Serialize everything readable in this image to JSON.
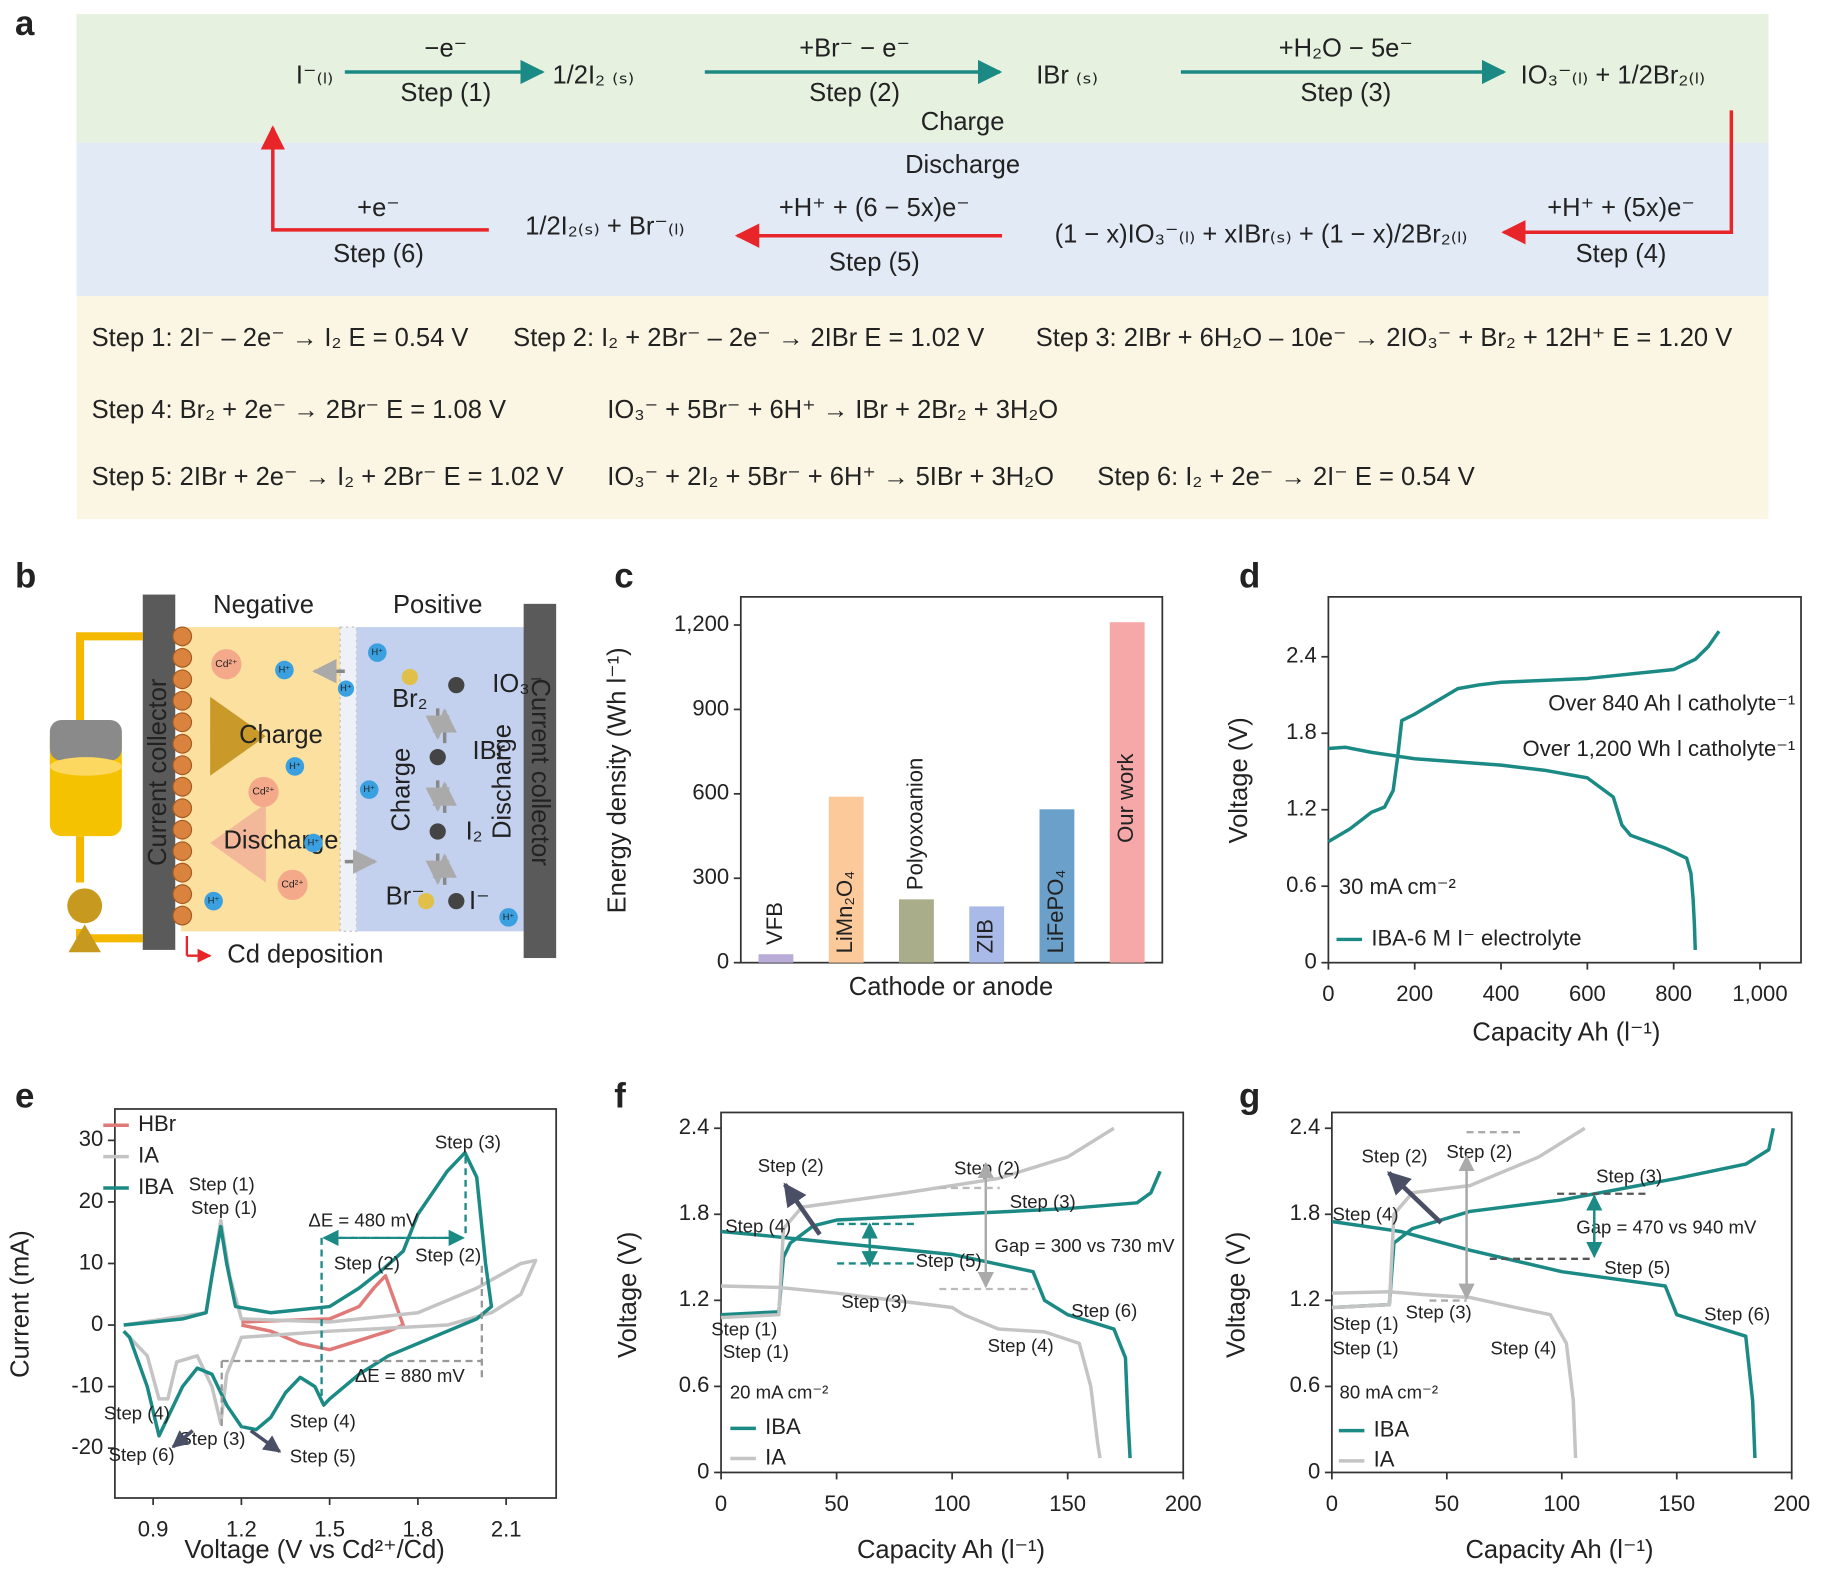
{
  "panel_labels": [
    "a",
    "b",
    "c",
    "d",
    "e",
    "f",
    "g"
  ],
  "scheme": {
    "charge_species": [
      "I⁻₍ₗ₎",
      "1/2I₂ ₍ₛ₎",
      "IBr ₍ₛ₎",
      "IO₃⁻₍ₗ₎ + 1/2Br₂₍ₗ₎"
    ],
    "charge_steps": [
      {
        "top": "−e⁻",
        "bottom": "Step (1)"
      },
      {
        "top": "+Br⁻ − e⁻",
        "bottom": "Step (2)"
      },
      {
        "top": "+H₂O − 5e⁻",
        "bottom": "Step (3)"
      }
    ],
    "charge_label": "Charge",
    "discharge_label": "Discharge",
    "discharge_species": [
      "(1 − x)IO₃⁻₍ₗ₎ + xIBr₍ₛ₎ + (1 − x)/2Br₂₍ₗ₎",
      "1/2I₂₍ₛ₎ + Br⁻₍ₗ₎"
    ],
    "discharge_steps": [
      {
        "top": "+H⁺ + (5x)e⁻",
        "bottom": "Step (4)"
      },
      {
        "top": "+H⁺ + (6 − 5x)e⁻",
        "bottom": "Step (5)"
      },
      {
        "top": "+e⁻",
        "bottom": "Step (6)"
      }
    ],
    "equations": [
      [
        "Step 1: 2I⁻ – 2e⁻ → I₂   E = 0.54 V",
        "Step 2: I₂ + 2Br⁻ – 2e⁻ → 2IBr   E = 1.02 V",
        "Step 3: 2IBr + 6H₂O – 10e⁻ → 2IO₃⁻ + Br₂ + 12H⁺   E = 1.20 V"
      ],
      [
        "Step 4: Br₂ + 2e⁻ → 2Br⁻   E = 1.08 V",
        "IO₃⁻ + 5Br⁻ + 6H⁺ → IBr + 2Br₂ + 3H₂O"
      ],
      [
        "Step 5: 2IBr + 2e⁻ → I₂ + 2Br⁻   E = 1.02 V",
        "IO₃⁻ + 2I₂ + 5Br⁻ + 6H⁺ → 5IBr + 3H₂O",
        "Step 6: I₂ + 2e⁻ → 2I⁻   E = 0.54 V"
      ]
    ]
  },
  "diagram": {
    "negative": "Negative",
    "positive": "Positive",
    "collector_left": "Current collector",
    "collector_right": "Current collector",
    "charge": "Charge",
    "discharge": "Discharge",
    "deposition": "Cd deposition",
    "inner_charge": "Charge",
    "inner_discharge": "Discharge",
    "ions": [
      "Cd²⁺",
      "Cd²⁺",
      "Cd²⁺",
      "H⁺",
      "H⁺",
      "H⁺",
      "H⁺",
      "H⁺",
      "H⁺",
      "H⁺",
      "H⁺"
    ],
    "species": [
      "Br₂",
      "IO₃⁻",
      "IBr",
      "I₂",
      "Br⁻",
      "I⁻"
    ]
  },
  "chart_data": [
    {
      "type": "bar",
      "ylabel": "Energy density (Wh l⁻¹)",
      "xlabel": "Cathode or anode",
      "categories": [
        "VFB",
        "LiMn₂O₄",
        "Polyoxoanion",
        "ZIB",
        "LiFePO₄",
        "Our work"
      ],
      "values": [
        30,
        590,
        225,
        200,
        545,
        1210
      ],
      "colors": [
        "#b9acd8",
        "#fbc99a",
        "#a9ad8a",
        "#a9b9e8",
        "#6aa0c9",
        "#f6a8a8"
      ],
      "ylim": [
        0,
        1300
      ],
      "yticks": [
        0,
        300,
        600,
        900,
        {
          "value": 1200,
          "label": "1,200"
        }
      ]
    },
    {
      "type": "line",
      "ylabel": "Voltage (V)",
      "xlabel": "Capacity Ah (l⁻¹)",
      "xlim": [
        0,
        1095
      ],
      "ylim": [
        0,
        2.87
      ],
      "xticks": [
        0,
        200,
        400,
        600,
        800,
        {
          "value": 1000,
          "label": "1,000"
        }
      ],
      "yticks": [
        0,
        0.6,
        1.2,
        1.8,
        2.4
      ],
      "series": [
        {
          "name": "IBA-6 M I⁻ electrolyte",
          "color": "#1b8a85",
          "curves": [
            {
              "x": [
                0,
                50,
                100,
                130,
                150,
                160,
                170,
                200,
                250,
                300,
                350,
                400,
                600,
                800,
                850,
                880,
                905
              ],
              "values": [
                0.95,
                1.05,
                1.18,
                1.22,
                1.35,
                1.6,
                1.9,
                1.95,
                2.05,
                2.15,
                2.18,
                2.2,
                2.23,
                2.3,
                2.38,
                2.48,
                2.6
              ]
            },
            {
              "x": [
                0,
                40,
                100,
                200,
                400,
                500,
                600,
                660,
                680,
                700,
                780,
                830,
                840,
                845,
                848,
                850
              ],
              "values": [
                1.68,
                1.69,
                1.65,
                1.6,
                1.55,
                1.51,
                1.45,
                1.3,
                1.08,
                1.0,
                0.9,
                0.82,
                0.7,
                0.5,
                0.3,
                0.1
              ]
            }
          ]
        }
      ],
      "annotations": [
        {
          "text": "Over 840 Ah l catholyte⁻¹",
          "color": "#333333"
        },
        {
          "text": "Over 1,200 Wh l catholyte⁻¹",
          "color": "#333333"
        },
        {
          "text": "30 mA cm⁻²",
          "color": "#333333"
        }
      ]
    },
    {
      "type": "line",
      "ylabel": "Current (mA)",
      "xlabel": "Voltage (V vs Cd²⁺/Cd)",
      "xlim": [
        0.77,
        2.27
      ],
      "ylim": [
        -28.1,
        35.1
      ],
      "xticks": [
        0.9,
        1.2,
        1.5,
        1.8,
        2.1
      ],
      "yticks": [
        -20,
        -10,
        0,
        10,
        20,
        30
      ],
      "series": [
        {
          "name": "HBr",
          "color": "#e07a78",
          "curves": [
            {
              "x": [
                1.2,
                1.5,
                1.6,
                1.65,
                1.69,
                1.72,
                1.75,
                1.7,
                1.6,
                1.5,
                1.4,
                1.3,
                1.2
              ],
              "values": [
                0.5,
                1,
                3,
                6,
                8,
                4,
                0,
                -1,
                -2.5,
                -4,
                -3,
                -1,
                0
              ]
            }
          ]
        },
        {
          "name": "IA",
          "color": "#c4c4c4",
          "curves": [
            {
              "x": [
                0.8,
                1.08,
                1.13,
                1.16,
                1.2,
                1.5,
                1.8,
                2.0,
                2.15,
                2.2,
                2.15,
                2.05,
                1.9,
                1.5,
                1.2,
                1.15,
                1.13,
                1.1,
                1.05,
                0.98,
                0.95,
                0.92,
                0.88,
                0.8
              ],
              "values": [
                0,
                2,
                17,
                8,
                1,
                0.5,
                2,
                6,
                10,
                10.5,
                5,
                2,
                0,
                -1,
                -2,
                -8,
                -16,
                -10,
                -5,
                -6,
                -12,
                -12,
                -5,
                -1
              ]
            }
          ]
        },
        {
          "name": "IBA",
          "color": "#1b8a85",
          "curves": [
            {
              "x": [
                0.8,
                0.9,
                1.0,
                1.08,
                1.1,
                1.13,
                1.15,
                1.18,
                1.3,
                1.5,
                1.6,
                1.68,
                1.75,
                1.8,
                1.9,
                1.96,
                2.0,
                2.03,
                2.05,
                2.0,
                1.9,
                1.8,
                1.7,
                1.6,
                1.5,
                1.48,
                1.45,
                1.4,
                1.35,
                1.3,
                1.25,
                1.2,
                1.15,
                1.1,
                1.05,
                1.0,
                0.95,
                0.92,
                0.88,
                0.82,
                0.8
              ],
              "values": [
                0,
                0.5,
                1,
                2,
                8,
                16,
                10,
                3,
                2,
                3,
                6,
                9,
                12,
                18,
                25,
                28,
                24,
                10,
                3,
                1,
                -1,
                -3,
                -5,
                -8,
                -12,
                -13,
                -10,
                -8.5,
                -11,
                -15,
                -17,
                -16.5,
                -13,
                -8,
                -7,
                -10,
                -15,
                -18,
                -10,
                -2,
                -1
              ]
            }
          ]
        }
      ],
      "annotations": [
        {
          "text": "Step (1)",
          "color": "#1b8a85"
        },
        {
          "text": "Step (1)",
          "color": "#a8a8a8"
        },
        {
          "text": "ΔE = 480 mV",
          "color": "#1b8a85"
        },
        {
          "text": "Step (2)",
          "color": "#1b8a85"
        },
        {
          "text": "Step (2)",
          "color": "#a8a8a8"
        },
        {
          "text": "Step (3)",
          "color": "#1b8a85"
        },
        {
          "text": "ΔE = 880 mV",
          "color": "#a8a8a8"
        },
        {
          "text": "Step (4)",
          "color": "#a8a8a8"
        },
        {
          "text": "Step (6)",
          "color": "#1b8a85"
        },
        {
          "text": "Step (3)",
          "color": "#a8a8a8"
        },
        {
          "text": "Step (4)",
          "color": "#1b8a85"
        },
        {
          "text": "Step (5)",
          "color": "#1b8a85"
        }
      ]
    },
    {
      "type": "line",
      "ylabel": "Voltage (V)",
      "xlabel": "Capacity Ah (l⁻¹)",
      "xlim": [
        0,
        200
      ],
      "ylim": [
        0,
        2.51
      ],
      "xticks": [
        0,
        50,
        100,
        150,
        200
      ],
      "yticks": [
        0,
        0.6,
        1.2,
        1.8,
        2.4
      ],
      "series": [
        {
          "name": "IBA",
          "color": "#1b8a85",
          "curves": [
            {
              "x": [
                0,
                25,
                27,
                30,
                40,
                50,
                100,
                150,
                180,
                186,
                190
              ],
              "values": [
                1.1,
                1.12,
                1.5,
                1.6,
                1.72,
                1.76,
                1.8,
                1.84,
                1.88,
                1.95,
                2.1
              ]
            },
            {
              "x": [
                0,
                20,
                50,
                100,
                135,
                140,
                150,
                170,
                175,
                176,
                177
              ],
              "values": [
                1.68,
                1.65,
                1.6,
                1.52,
                1.4,
                1.2,
                1.1,
                1.0,
                0.8,
                0.4,
                0.1
              ]
            }
          ]
        },
        {
          "name": "IA",
          "color": "#c4c4c4",
          "curves": [
            {
              "x": [
                0,
                25,
                27,
                35,
                80,
                120,
                150,
                170
              ],
              "values": [
                1.08,
                1.1,
                1.7,
                1.85,
                1.95,
                2.05,
                2.2,
                2.4
              ]
            },
            {
              "x": [
                0,
                25,
                50,
                100,
                105,
                120,
                140,
                155,
                160,
                163,
                164
              ],
              "values": [
                1.3,
                1.29,
                1.25,
                1.15,
                1.1,
                1.0,
                0.98,
                0.9,
                0.6,
                0.2,
                0.1
              ]
            }
          ]
        }
      ],
      "annotations": [
        {
          "text": "Step (2)",
          "color": "#1b8a85"
        },
        {
          "text": "Step (2)",
          "color": "#a8a8a8"
        },
        {
          "text": "Step (3)",
          "color": "#1b8a85"
        },
        {
          "text": "Step (4)",
          "color": "#1b8a85"
        },
        {
          "text": "Step (5)",
          "color": "#1b8a85"
        },
        {
          "text": "Gap = 300 vs 730 mV",
          "color": "#333333"
        },
        {
          "text": "Step (3)",
          "color": "#a8a8a8"
        },
        {
          "text": "Step (6)",
          "color": "#1b8a85"
        },
        {
          "text": "Step (1)",
          "color": "#1b8a85"
        },
        {
          "text": "Step (1)",
          "color": "#a8a8a8"
        },
        {
          "text": "Step (4)",
          "color": "#a8a8a8"
        },
        {
          "text": "20 mA cm⁻²",
          "color": "#333333"
        }
      ]
    },
    {
      "type": "line",
      "ylabel": "Voltage (V)",
      "xlabel": "Capacity Ah (l⁻¹)",
      "xlim": [
        0,
        200
      ],
      "ylim": [
        0,
        2.51
      ],
      "xticks": [
        0,
        50,
        100,
        150,
        200
      ],
      "yticks": [
        0,
        0.6,
        1.2,
        1.8,
        2.4
      ],
      "series": [
        {
          "name": "IBA",
          "color": "#1b8a85",
          "curves": [
            {
              "x": [
                0,
                25,
                27,
                35,
                60,
                100,
                150,
                180,
                190,
                192
              ],
              "values": [
                1.15,
                1.17,
                1.6,
                1.7,
                1.82,
                1.9,
                2.05,
                2.15,
                2.25,
                2.4
              ]
            },
            {
              "x": [
                0,
                30,
                60,
                100,
                145,
                150,
                170,
                180,
                183,
                184
              ],
              "values": [
                1.75,
                1.68,
                1.55,
                1.4,
                1.3,
                1.1,
                1.0,
                0.95,
                0.5,
                0.1
              ]
            }
          ]
        },
        {
          "name": "IA",
          "color": "#c4c4c4",
          "curves": [
            {
              "x": [
                0,
                25,
                27,
                35,
                60,
                90,
                110
              ],
              "values": [
                1.15,
                1.17,
                1.8,
                1.95,
                2.0,
                2.2,
                2.4
              ]
            },
            {
              "x": [
                0,
                25,
                40,
                60,
                80,
                95,
                102,
                105,
                106
              ],
              "values": [
                1.25,
                1.26,
                1.24,
                1.22,
                1.15,
                1.1,
                0.9,
                0.5,
                0.1
              ]
            }
          ]
        }
      ],
      "annotations": [
        {
          "text": "Step (2)",
          "color": "#1b8a85"
        },
        {
          "text": "Step (2)",
          "color": "#a8a8a8"
        },
        {
          "text": "Step (3)",
          "color": "#1b8a85"
        },
        {
          "text": "Step (4)",
          "color": "#1b8a85"
        },
        {
          "text": "Gap = 470 vs 940 mV",
          "color": "#333333"
        },
        {
          "text": "Step (5)",
          "color": "#1b8a85"
        },
        {
          "text": "Step (3)",
          "color": "#a8a8a8"
        },
        {
          "text": "Step (6)",
          "color": "#1b8a85"
        },
        {
          "text": "Step (1)",
          "color": "#1b8a85"
        },
        {
          "text": "Step (1)",
          "color": "#a8a8a8"
        },
        {
          "text": "Step (4)",
          "color": "#a8a8a8"
        },
        {
          "text": "80 mA cm⁻²",
          "color": "#333333"
        }
      ]
    }
  ]
}
